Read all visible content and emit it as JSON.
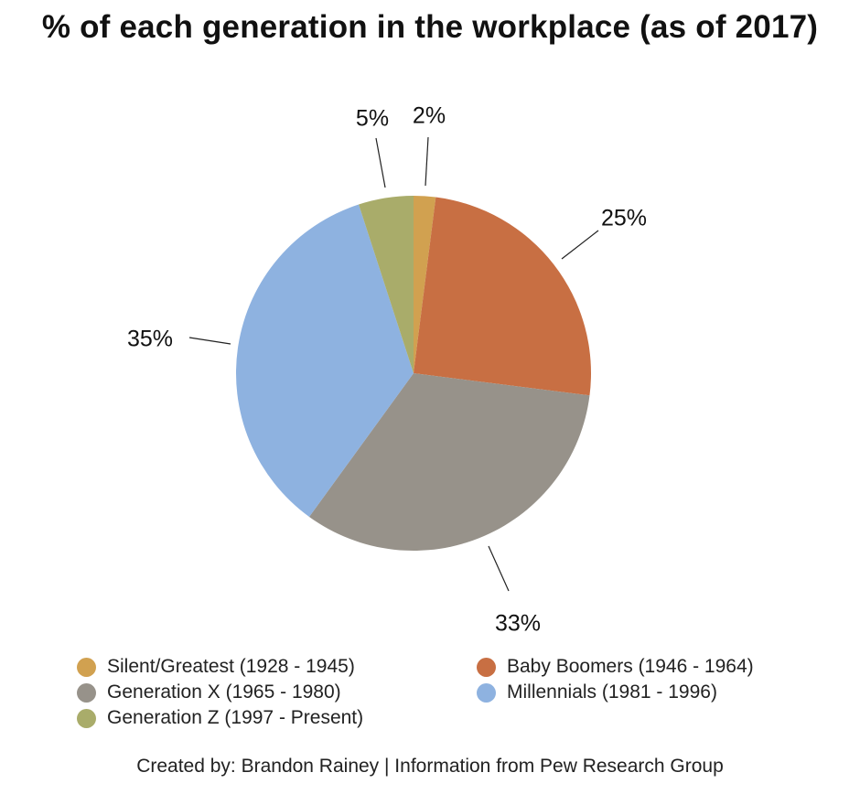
{
  "chart_data": {
    "type": "pie",
    "title": "% of each generation in the workplace (as of 2017)",
    "categories": [
      "Silent/Greatest (1928 - 1945)",
      "Baby Boomers (1946 - 1964)",
      "Generation X (1965 - 1980)",
      "Millennials (1981 - 1996)",
      "Generation Z (1997 - Present)"
    ],
    "values": [
      2,
      25,
      33,
      35,
      5
    ],
    "labels": [
      "2%",
      "25%",
      "33%",
      "35%",
      "5%"
    ],
    "colors": [
      "#D1A150",
      "#C86F43",
      "#97928A",
      "#8EB2E0",
      "#A9AC6A"
    ],
    "legend_position": "bottom",
    "footer": "Created by: Brandon Rainey | Information from Pew Research Group"
  }
}
